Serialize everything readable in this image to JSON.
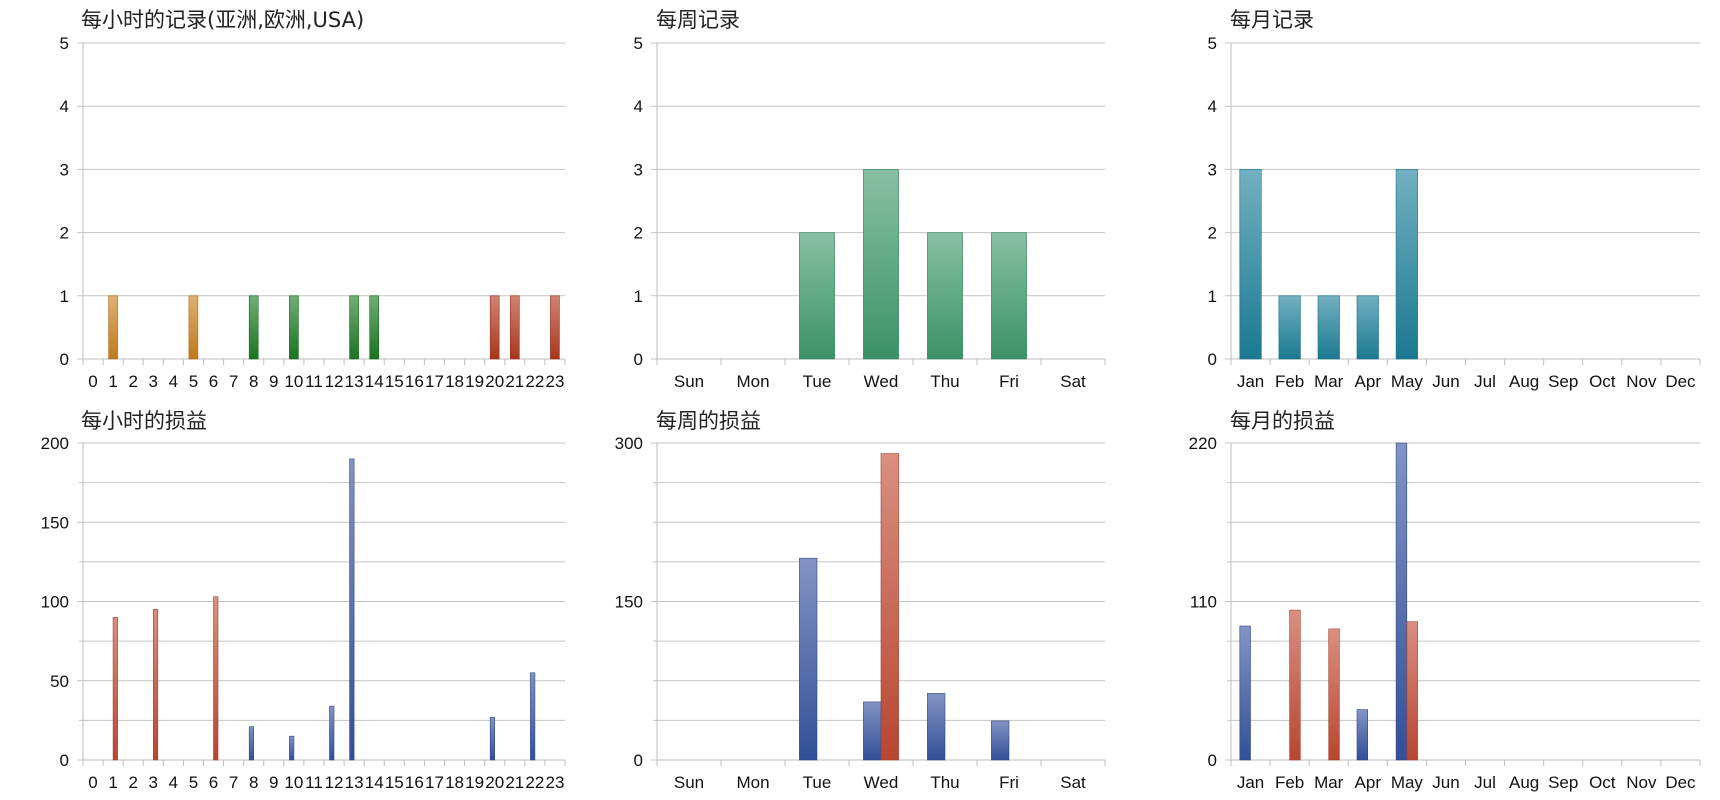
{
  "colors": {
    "orange": "#c9801f",
    "green": "#1a7a22",
    "red": "#b2391f",
    "teal_green": "#3e9a6c",
    "teal_blue": "#1b7f99",
    "blue": "#3553a0",
    "salmon": "#c24a33",
    "blue_light": "#7f9fd7"
  },
  "chart_data": [
    {
      "type": "bar",
      "title": "每小时的记录(亚洲,欧洲,USA)",
      "categories": [
        "0",
        "1",
        "2",
        "3",
        "4",
        "5",
        "6",
        "7",
        "8",
        "9",
        "10",
        "11",
        "12",
        "13",
        "14",
        "15",
        "16",
        "17",
        "18",
        "19",
        "20",
        "21",
        "22",
        "23"
      ],
      "series": [
        {
          "values": [
            0,
            1,
            0,
            0,
            0,
            1,
            0,
            0,
            0,
            0,
            0,
            0,
            0,
            0,
            0,
            0,
            0,
            0,
            0,
            0,
            0,
            0,
            0,
            0
          ],
          "color": "#c9801f"
        },
        {
          "values": [
            0,
            0,
            0,
            0,
            0,
            0,
            0,
            0,
            1,
            0,
            1,
            0,
            0,
            1,
            1,
            0,
            0,
            0,
            0,
            0,
            0,
            0,
            0,
            0
          ],
          "color": "#1a7a22"
        },
        {
          "values": [
            0,
            0,
            0,
            0,
            0,
            0,
            0,
            0,
            0,
            0,
            0,
            0,
            0,
            0,
            0,
            0,
            0,
            0,
            0,
            0,
            1,
            1,
            0,
            1
          ],
          "color": "#b2391f"
        }
      ],
      "ylim": [
        0,
        5
      ],
      "yticks": [
        0,
        1,
        2,
        3,
        4,
        5
      ],
      "grid": true,
      "legend": "none"
    },
    {
      "type": "bar",
      "title": "每周记录",
      "categories": [
        "Sun",
        "Mon",
        "Tue",
        "Wed",
        "Thu",
        "Fri",
        "Sat"
      ],
      "series": [
        {
          "values": [
            0,
            0,
            2,
            3,
            2,
            2,
            0
          ],
          "color": "#3e9a6c"
        }
      ],
      "ylim": [
        0,
        5
      ],
      "yticks": [
        0,
        1,
        2,
        3,
        4,
        5
      ],
      "grid": true,
      "legend": "none"
    },
    {
      "type": "bar",
      "title": "每月记录",
      "categories": [
        "Jan",
        "Feb",
        "Mar",
        "Apr",
        "May",
        "Jun",
        "Jul",
        "Aug",
        "Sep",
        "Oct",
        "Nov",
        "Dec"
      ],
      "series": [
        {
          "values": [
            3,
            1,
            1,
            1,
            3,
            0,
            0,
            0,
            0,
            0,
            0,
            0
          ],
          "color": "#1b7f99"
        }
      ],
      "ylim": [
        0,
        5
      ],
      "yticks": [
        0,
        1,
        2,
        3,
        4,
        5
      ],
      "grid": true,
      "legend": "none"
    },
    {
      "type": "bar",
      "title": "每小时的损益",
      "categories": [
        "0",
        "1",
        "2",
        "3",
        "4",
        "5",
        "6",
        "7",
        "8",
        "9",
        "10",
        "11",
        "12",
        "13",
        "14",
        "15",
        "16",
        "17",
        "18",
        "19",
        "20",
        "21",
        "22",
        "23"
      ],
      "series": [
        {
          "values": [
            0,
            0,
            0,
            0,
            0,
            0,
            0,
            0,
            21,
            0,
            15,
            0,
            34,
            190,
            0,
            0,
            0,
            0,
            0,
            0,
            27,
            0,
            55,
            0
          ],
          "color": "#3553a0"
        },
        {
          "values": [
            0,
            90,
            0,
            95,
            0,
            0,
            103,
            0,
            0,
            0,
            0,
            0,
            0,
            0,
            0,
            0,
            0,
            0,
            0,
            0,
            0,
            0,
            0,
            0
          ],
          "color": "#c24a33"
        }
      ],
      "ylim": [
        0,
        200
      ],
      "yticks": [
        0,
        50,
        100,
        150,
        200
      ],
      "grid": true,
      "legend": "none"
    },
    {
      "type": "bar",
      "title": "每周的损益",
      "categories": [
        "Sun",
        "Mon",
        "Tue",
        "Wed",
        "Thu",
        "Fri",
        "Sat"
      ],
      "series": [
        {
          "values": [
            0,
            0,
            191,
            55,
            63,
            37,
            0
          ],
          "color": "#3553a0"
        },
        {
          "values": [
            0,
            0,
            0,
            290,
            0,
            0,
            0
          ],
          "color": "#c24a33"
        }
      ],
      "ylim": [
        0,
        300
      ],
      "yticks": [
        0,
        150,
        300
      ],
      "grid": true,
      "legend": "none"
    },
    {
      "type": "bar",
      "title": "每月的损益",
      "categories": [
        "Jan",
        "Feb",
        "Mar",
        "Apr",
        "May",
        "Jun",
        "Jul",
        "Aug",
        "Sep",
        "Oct",
        "Nov",
        "Dec"
      ],
      "series": [
        {
          "values": [
            93,
            0,
            0,
            35,
            220,
            0,
            0,
            0,
            0,
            0,
            0,
            0
          ],
          "color": "#3553a0"
        },
        {
          "values": [
            0,
            104,
            91,
            0,
            96,
            0,
            0,
            0,
            0,
            0,
            0,
            0
          ],
          "color": "#c24a33"
        }
      ],
      "ylim": [
        0,
        220
      ],
      "yticks": [
        0,
        110,
        220
      ],
      "grid": true,
      "legend": "none"
    }
  ]
}
